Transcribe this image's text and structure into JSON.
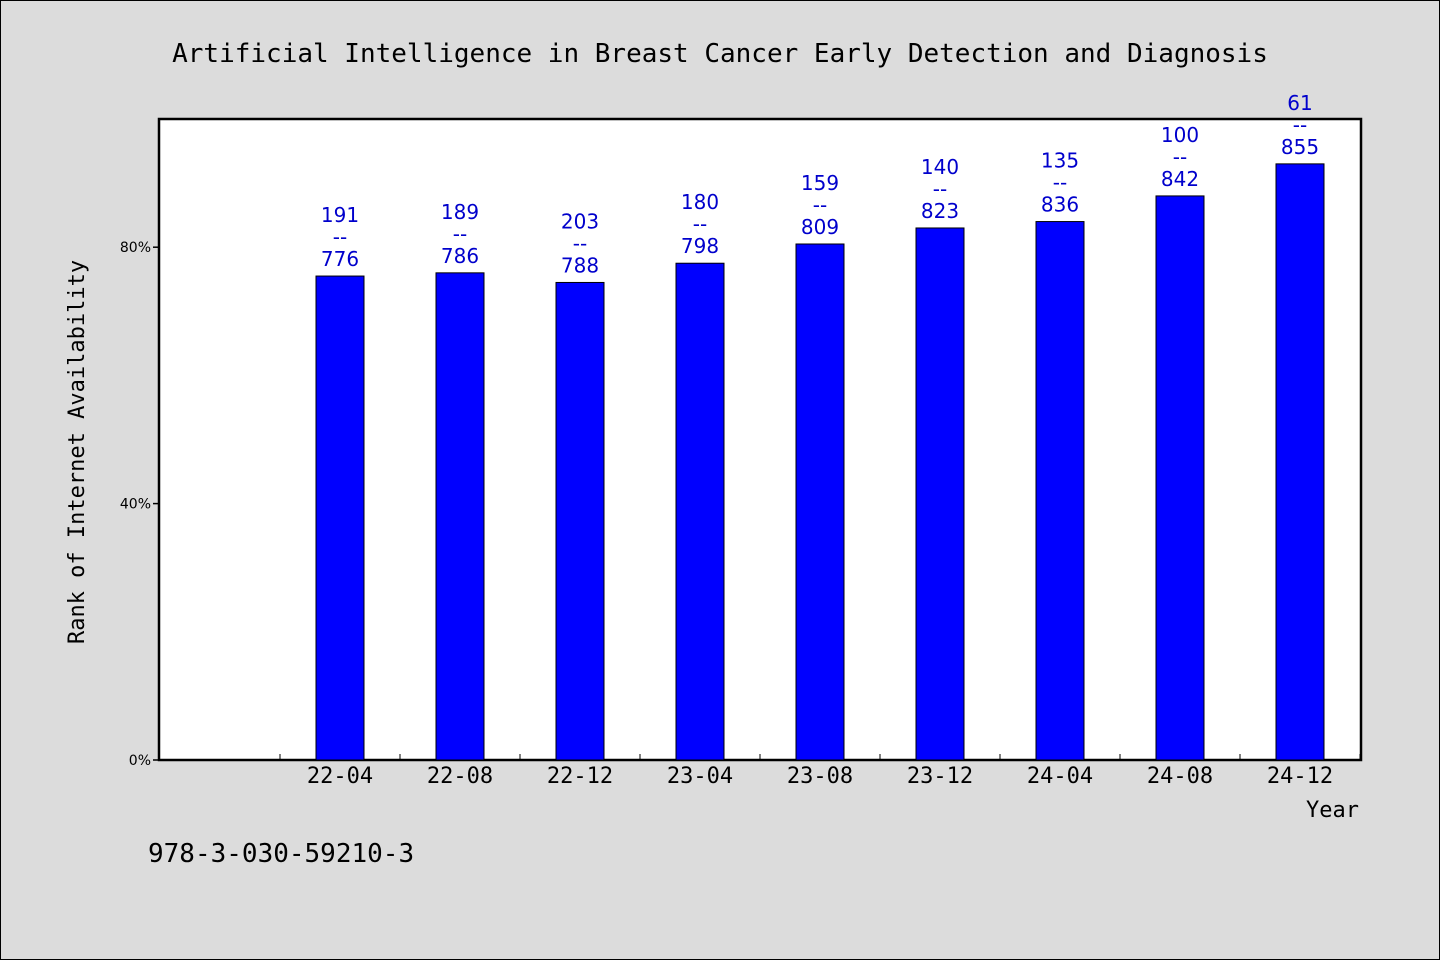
{
  "chart_data": {
    "type": "bar",
    "title": "Artificial Intelligence in Breast Cancer Early Detection and Diagnosis",
    "xlabel": "Year",
    "ylabel": "Rank of Internet Availability",
    "ylim": [
      0,
      100
    ],
    "yticks": [
      {
        "value": 0,
        "label": "0%"
      },
      {
        "value": 40,
        "label": "40%"
      },
      {
        "value": 80,
        "label": "80%"
      }
    ],
    "categories": [
      "22-04",
      "22-08",
      "22-12",
      "23-04",
      "23-08",
      "23-12",
      "24-04",
      "24-08",
      "24-12"
    ],
    "values": [
      75.5,
      76.0,
      74.5,
      77.5,
      80.5,
      83.0,
      84.0,
      88.0,
      93.0
    ],
    "labels_top": [
      "191",
      "189",
      "203",
      "180",
      "159",
      "140",
      "135",
      "100",
      "61"
    ],
    "labels_sep": "--",
    "labels_bottom": [
      "776",
      "786",
      "788",
      "798",
      "809",
      "823",
      "836",
      "842",
      "855"
    ],
    "bar_color": "#0000ff",
    "label_color": "#0000cc",
    "grid": false,
    "legend": "none"
  },
  "footer": {
    "isbn": "978-3-030-59210-3"
  }
}
